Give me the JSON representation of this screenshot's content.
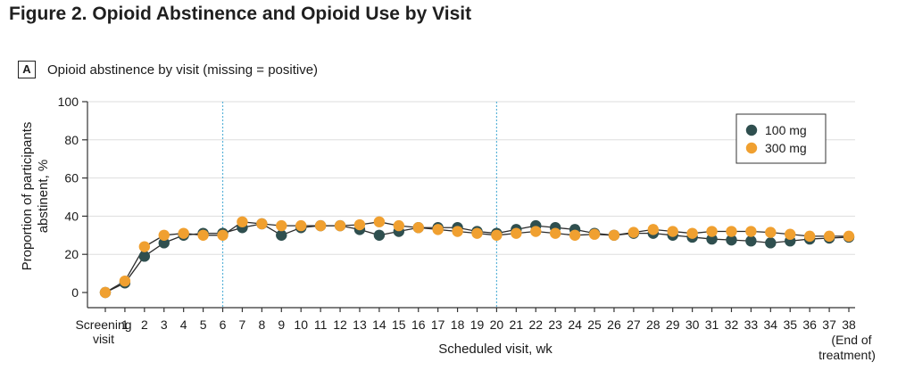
{
  "figure_title": "Figure 2.  Opioid Abstinence and Opioid Use by Visit",
  "panel": {
    "label": "A",
    "title": "Opioid abstinence by visit (missing = positive)"
  },
  "colors": {
    "series_100mg": "#2f4f4f",
    "series_300mg": "#f0a030",
    "reference_line": "#5bb3d9",
    "axis": "#333333",
    "grid": "#dddddd"
  },
  "chart_data": {
    "type": "line",
    "title": "Opioid abstinence by visit (missing = positive)",
    "xlabel": "Scheduled visit, wk",
    "ylabel": "Proportion of participants abstinent, %",
    "ylim": [
      0,
      100
    ],
    "yticks": [
      0,
      20,
      40,
      60,
      80,
      100
    ],
    "grid": true,
    "legend_position": "top-right",
    "categories": [
      "Screening visit",
      "1",
      "2",
      "3",
      "4",
      "5",
      "6",
      "7",
      "8",
      "9",
      "10",
      "11",
      "12",
      "13",
      "14",
      "15",
      "16",
      "17",
      "18",
      "19",
      "20",
      "21",
      "22",
      "23",
      "24",
      "25",
      "26",
      "27",
      "28",
      "29",
      "30",
      "31",
      "32",
      "33",
      "34",
      "35",
      "36",
      "37",
      "38"
    ],
    "first_tick_lines": [
      "Screening",
      "visit"
    ],
    "last_tick_note_lines": [
      "(End of",
      "treatment)"
    ],
    "reference_lines_x": [
      "6",
      "20"
    ],
    "series": [
      {
        "name": "100 mg",
        "color": "#2f4f4f",
        "values": [
          0,
          5,
          19,
          26,
          30,
          31,
          31,
          34,
          36,
          30,
          34,
          35,
          35,
          33,
          30,
          32,
          34,
          34,
          34,
          32,
          31,
          33,
          35,
          34,
          33,
          31,
          30,
          31,
          31,
          30,
          29,
          28,
          27.5,
          27,
          26,
          27,
          28,
          28.5,
          29
        ]
      },
      {
        "name": "300 mg",
        "color": "#f0a030",
        "values": [
          0,
          6,
          24,
          30,
          31,
          30,
          30,
          37,
          36,
          35,
          35,
          35,
          35,
          35.5,
          37,
          35,
          34,
          33,
          32,
          31,
          30,
          31,
          32,
          31,
          30,
          30.5,
          30,
          31.5,
          33,
          32,
          31,
          32,
          32,
          32,
          31.5,
          30.5,
          29.5,
          29.5,
          29.5
        ]
      }
    ]
  }
}
